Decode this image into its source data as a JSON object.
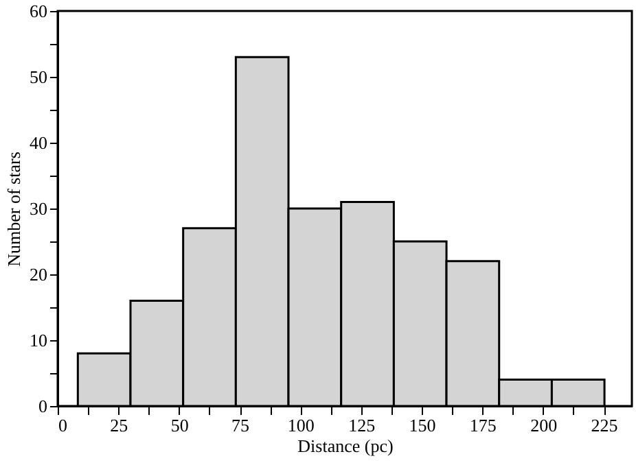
{
  "chart_data": {
    "type": "histogram",
    "xlabel": "Distance (pc)",
    "ylabel": "Number of stars",
    "bins": [
      8.3,
      30,
      51.7,
      73.4,
      95.1,
      116.8,
      138.5,
      160.2,
      181.9,
      203.6,
      225.3
    ],
    "values": [
      8,
      16,
      27,
      53,
      30,
      31,
      25,
      22,
      4,
      4
    ],
    "color": "#d4d4d4",
    "xlim": [
      0,
      236.6
    ],
    "xticks": [
      0,
      {
        "value": 12.5,
        "label": null
      },
      25,
      {
        "value": 37.5,
        "label": null
      },
      50,
      {
        "value": 62.5,
        "label": null
      },
      75,
      {
        "value": 87.5,
        "label": null
      },
      100,
      {
        "value": 112.5,
        "label": null
      },
      125,
      {
        "value": 137.5,
        "label": null
      },
      150,
      {
        "value": 162.5,
        "label": null
      },
      175,
      {
        "value": 187.5,
        "label": null
      },
      200,
      {
        "value": 212.5,
        "label": null
      },
      225
    ],
    "ylim": [
      0,
      60
    ],
    "yticks": [
      0,
      {
        "value": 5,
        "label": null
      },
      10,
      {
        "value": 15,
        "label": null
      },
      20,
      {
        "value": 25,
        "label": null
      },
      30,
      {
        "value": 35,
        "label": null
      },
      40,
      {
        "value": 45,
        "label": null
      },
      50,
      {
        "value": 55,
        "label": null
      },
      60
    ],
    "grid": false
  }
}
